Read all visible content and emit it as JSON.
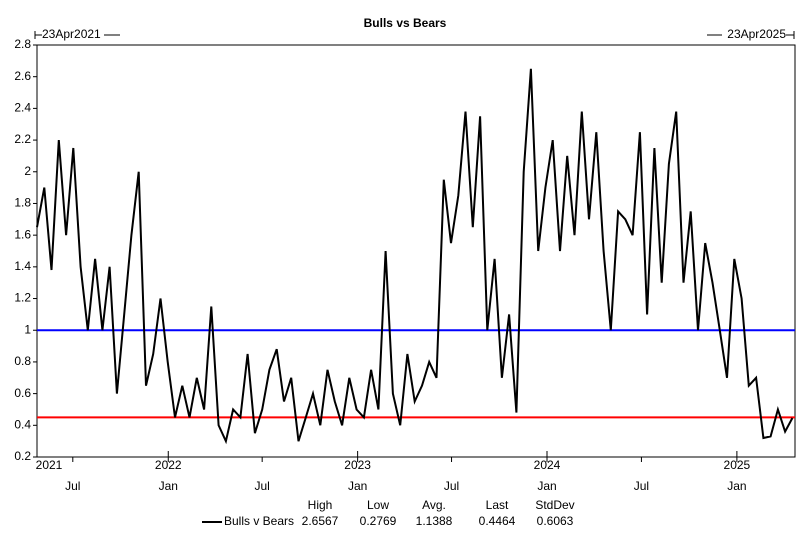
{
  "chart_data": {
    "type": "line",
    "title": "Bulls vs Bears",
    "start_label": "23Apr2021",
    "end_label": "23Apr2025",
    "xlim": [
      "2021-04-23",
      "2025-04-23"
    ],
    "ylim": [
      0.2,
      2.8
    ],
    "yticks": [
      0.2,
      0.4,
      0.6,
      0.8,
      1,
      1.2,
      1.4,
      1.6,
      1.8,
      2,
      2.2,
      2.4,
      2.6,
      2.8
    ],
    "xticks": [
      {
        "value": "2021-07-01",
        "label": "Jul"
      },
      {
        "value": "2022-01-01",
        "label": "Jan"
      },
      {
        "value": "2022-07-01",
        "label": "Jul"
      },
      {
        "value": "2023-01-01",
        "label": "Jan"
      },
      {
        "value": "2023-07-01",
        "label": "Jul"
      },
      {
        "value": "2024-01-01",
        "label": "Jan"
      },
      {
        "value": "2024-07-01",
        "label": "Jul"
      },
      {
        "value": "2025-01-01",
        "label": "Jan"
      }
    ],
    "year_labels": [
      {
        "value": "2021-04-23",
        "label": "2021"
      },
      {
        "value": "2022-01-01",
        "label": "2022"
      },
      {
        "value": "2023-01-01",
        "label": "2023"
      },
      {
        "value": "2024-01-01",
        "label": "2024"
      },
      {
        "value": "2025-01-01",
        "label": "2025"
      }
    ],
    "reference_lines": [
      {
        "value": 1,
        "color": "#0000ff"
      },
      {
        "value": 0.45,
        "color": "#ff0000"
      }
    ],
    "x": [
      "2021-04-23",
      "2021-05-07",
      "2021-05-21",
      "2021-06-04",
      "2021-06-18",
      "2021-07-02",
      "2021-07-16",
      "2021-07-30",
      "2021-08-13",
      "2021-08-27",
      "2021-09-10",
      "2021-09-24",
      "2021-10-08",
      "2021-10-22",
      "2021-11-05",
      "2021-11-19",
      "2021-12-03",
      "2021-12-17",
      "2021-12-31",
      "2022-01-14",
      "2022-01-28",
      "2022-02-11",
      "2022-02-25",
      "2022-03-11",
      "2022-03-25",
      "2022-04-08",
      "2022-04-22",
      "2022-05-06",
      "2022-05-20",
      "2022-06-03",
      "2022-06-17",
      "2022-07-01",
      "2022-07-15",
      "2022-07-29",
      "2022-08-12",
      "2022-08-26",
      "2022-09-09",
      "2022-09-23",
      "2022-10-07",
      "2022-10-21",
      "2022-11-04",
      "2022-11-18",
      "2022-12-02",
      "2022-12-16",
      "2022-12-30",
      "2023-01-13",
      "2023-01-27",
      "2023-02-10",
      "2023-02-24",
      "2023-03-10",
      "2023-03-24",
      "2023-04-07",
      "2023-04-21",
      "2023-05-05",
      "2023-05-19",
      "2023-06-02",
      "2023-06-16",
      "2023-06-30",
      "2023-07-14",
      "2023-07-28",
      "2023-08-11",
      "2023-08-25",
      "2023-09-08",
      "2023-09-22",
      "2023-10-06",
      "2023-10-20",
      "2023-11-03",
      "2023-11-17",
      "2023-12-01",
      "2023-12-15",
      "2023-12-29",
      "2024-01-12",
      "2024-01-26",
      "2024-02-09",
      "2024-02-23",
      "2024-03-08",
      "2024-03-22",
      "2024-04-05",
      "2024-04-19",
      "2024-05-03",
      "2024-05-17",
      "2024-05-31",
      "2024-06-14",
      "2024-06-28",
      "2024-07-12",
      "2024-07-26",
      "2024-08-09",
      "2024-08-23",
      "2024-09-06",
      "2024-09-20",
      "2024-10-04",
      "2024-10-18",
      "2024-11-01",
      "2024-11-15",
      "2024-11-29",
      "2024-12-13",
      "2024-12-27",
      "2025-01-10",
      "2025-01-24",
      "2025-02-07",
      "2025-02-21",
      "2025-03-07",
      "2025-03-21",
      "2025-04-04",
      "2025-04-18"
    ],
    "series": [
      {
        "name": "Bulls v Bears",
        "color": "#000000",
        "values": [
          1.65,
          1.9,
          1.38,
          2.2,
          1.6,
          2.15,
          1.4,
          1.0,
          1.45,
          1.0,
          1.4,
          0.6,
          1.1,
          1.6,
          2.0,
          0.65,
          0.85,
          1.2,
          0.8,
          0.45,
          0.65,
          0.45,
          0.7,
          0.5,
          1.15,
          0.4,
          0.3,
          0.5,
          0.45,
          0.85,
          0.35,
          0.5,
          0.75,
          0.88,
          0.55,
          0.7,
          0.3,
          0.45,
          0.6,
          0.4,
          0.75,
          0.55,
          0.4,
          0.7,
          0.5,
          0.45,
          0.75,
          0.5,
          1.5,
          0.6,
          0.4,
          0.85,
          0.55,
          0.65,
          0.8,
          0.7,
          1.95,
          1.55,
          1.85,
          2.38,
          1.65,
          2.35,
          1.0,
          1.45,
          0.7,
          1.1,
          0.48,
          2.0,
          2.65,
          1.5,
          1.9,
          2.2,
          1.5,
          2.1,
          1.6,
          2.38,
          1.7,
          2.25,
          1.5,
          1.0,
          1.75,
          1.7,
          1.6,
          2.25,
          1.1,
          2.15,
          1.3,
          2.05,
          2.38,
          1.3,
          1.75,
          1.0,
          1.55,
          1.3,
          1.0,
          0.7,
          1.45,
          1.2,
          0.65,
          0.7,
          0.32,
          0.33,
          0.5,
          0.36,
          0.4464
        ]
      }
    ],
    "stats": {
      "headers": [
        "High",
        "Low",
        "Avg.",
        "Last",
        "StdDev"
      ],
      "values": [
        2.6567,
        0.2769,
        1.1388,
        0.4464,
        0.6063
      ]
    }
  }
}
